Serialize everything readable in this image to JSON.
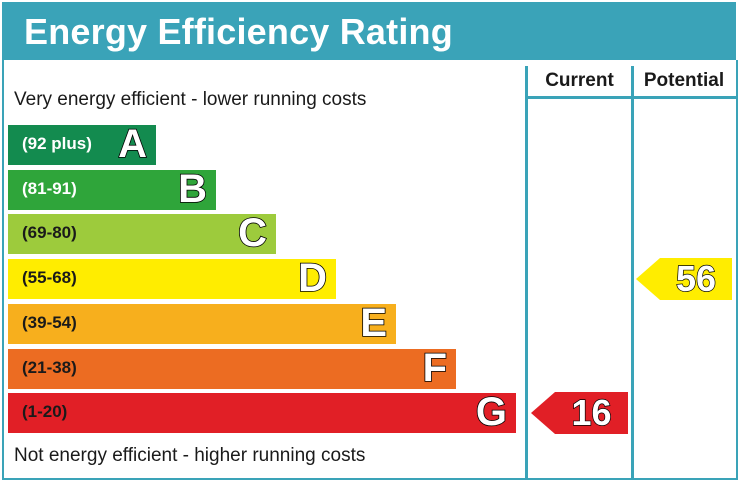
{
  "header": {
    "title": "Energy Efficiency Rating"
  },
  "columns": {
    "current": "Current",
    "potential": "Potential"
  },
  "notes": {
    "top": "Very energy efficient - lower running costs",
    "bottom": "Not energy efficient - higher running costs"
  },
  "bands": [
    {
      "letter": "A",
      "range": "(92 plus)",
      "color": "#138b4f",
      "text_color": "#ffffff"
    },
    {
      "letter": "B",
      "range": "(81-91)",
      "color": "#2fa53a",
      "text_color": "#ffffff"
    },
    {
      "letter": "C",
      "range": "(69-80)",
      "color": "#9dcb3c",
      "text_color": "#1a1a1a"
    },
    {
      "letter": "D",
      "range": "(55-68)",
      "color": "#ffed00",
      "text_color": "#1a1a1a"
    },
    {
      "letter": "E",
      "range": "(39-54)",
      "color": "#f7af1d",
      "text_color": "#1a1a1a"
    },
    {
      "letter": "F",
      "range": "(21-38)",
      "color": "#ec6c22",
      "text_color": "#1a1a1a"
    },
    {
      "letter": "G",
      "range": "(1-20)",
      "color": "#e11f26",
      "text_color": "#1a1a1a"
    }
  ],
  "ratings": {
    "current": {
      "value": "16",
      "band": "G",
      "color": "#e11f26",
      "text_color": "#ffffff"
    },
    "potential": {
      "value": "56",
      "band": "D",
      "color": "#ffed00",
      "text_color": "#ffffff"
    }
  },
  "colors": {
    "accent": "#3aa3b8"
  }
}
